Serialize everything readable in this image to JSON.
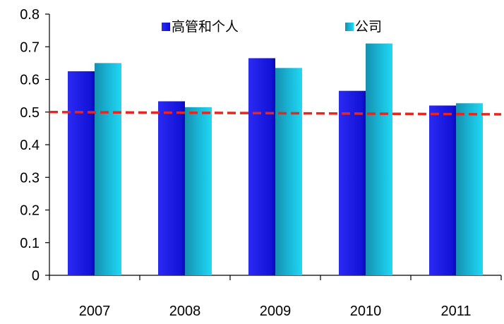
{
  "chart_data": {
    "type": "bar",
    "title": "",
    "xlabel": "",
    "ylabel": "",
    "categories": [
      "2007",
      "2008",
      "2009",
      "2010",
      "2011"
    ],
    "series": [
      {
        "name": "高管和个人",
        "values": [
          0.625,
          0.533,
          0.665,
          0.565,
          0.52
        ],
        "color": "#1a1ae6"
      },
      {
        "name": "公司",
        "values": [
          0.65,
          0.515,
          0.635,
          0.71,
          0.527
        ],
        "color": "#17b8d6"
      }
    ],
    "ylim": [
      0,
      0.8
    ],
    "yticks": [
      "0",
      "0.1",
      "0.2",
      "0.3",
      "0.4",
      "0.5",
      "0.6",
      "0.7",
      "0.8"
    ],
    "reference_line": {
      "y_start": 0.5,
      "y_end": 0.493,
      "color": "#e8261e",
      "style": "dashed"
    },
    "legend_position": "top-center",
    "grid": false
  }
}
